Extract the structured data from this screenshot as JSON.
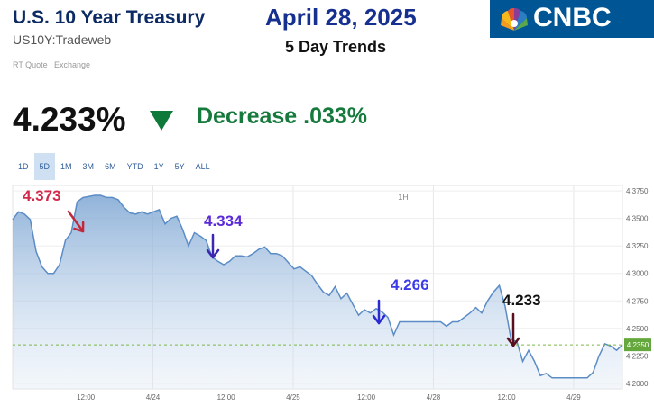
{
  "header": {
    "title": "U.S. 10 Year Treasury",
    "symbol": "US10Y:Tradeweb",
    "rt_quote": "RT Quote | Exchange",
    "date": "April 28, 2025",
    "subtitle": "5 Day Trends",
    "logo_text": "CNBC"
  },
  "quote": {
    "price": "4.233%",
    "change_text": "Decrease  .033%",
    "direction": "down",
    "colors": {
      "down": "#0e7a3a",
      "accent": "#16308f"
    }
  },
  "range_tabs": {
    "items": [
      "1D",
      "5D",
      "1M",
      "3M",
      "6M",
      "YTD",
      "1Y",
      "5Y",
      "ALL"
    ],
    "selected": "5D"
  },
  "chart_data": {
    "type": "area",
    "interval_label": "1H",
    "x_tick_labels": [
      "12:00",
      "4/24",
      "12:00",
      "4/25",
      "12:00",
      "4/28",
      "12:00",
      "4/29"
    ],
    "y_tick_labels": [
      "4.3750",
      "4.3500",
      "4.3250",
      "4.3000",
      "4.2750",
      "4.2500",
      "4.2250",
      "4.2000"
    ],
    "ylim": [
      4.195,
      4.38
    ],
    "current_value_label": "4.2350",
    "current_value": 4.235,
    "annotations": [
      {
        "text": "4.373",
        "color": "#d12a4a",
        "arrow_color": "#c0283c"
      },
      {
        "text": "4.334",
        "color": "#5a2bd6",
        "arrow_color": "#3c28b0"
      },
      {
        "text": "4.266",
        "color": "#3b3be8",
        "arrow_color": "#2a2ad0"
      },
      {
        "text": "4.233",
        "color": "#111111",
        "arrow_color": "#5a0f1e"
      }
    ],
    "series": [
      {
        "values": [
          4.349,
          4.356,
          4.354,
          4.349,
          4.32,
          4.306,
          4.3,
          4.3,
          4.308,
          4.33,
          4.337,
          4.365,
          4.369,
          4.37,
          4.371,
          4.371,
          4.369,
          4.369,
          4.367,
          4.36,
          4.355,
          4.354,
          4.356,
          4.354,
          4.356,
          4.358,
          4.345,
          4.35,
          4.352,
          4.34,
          4.325,
          4.337,
          4.334,
          4.33,
          4.315,
          4.311,
          4.308,
          4.311,
          4.316,
          4.316,
          4.315,
          4.318,
          4.322,
          4.324,
          4.318,
          4.318,
          4.316,
          4.31,
          4.304,
          4.306,
          4.302,
          4.298,
          4.29,
          4.283,
          4.28,
          4.288,
          4.277,
          4.282,
          4.272,
          4.262,
          4.267,
          4.264,
          4.268,
          4.265,
          4.26,
          4.244,
          4.256,
          4.256,
          4.256,
          4.256,
          4.256,
          4.256,
          4.256,
          4.256,
          4.252,
          4.256,
          4.256,
          4.26,
          4.264,
          4.269,
          4.264,
          4.275,
          4.283,
          4.289,
          4.27,
          4.24,
          4.238,
          4.22,
          4.23,
          4.22,
          4.207,
          4.209,
          4.205,
          4.205,
          4.205,
          4.205,
          4.205,
          4.205,
          4.205,
          4.21,
          4.225,
          4.236,
          4.234,
          4.23,
          4.235
        ]
      }
    ]
  }
}
